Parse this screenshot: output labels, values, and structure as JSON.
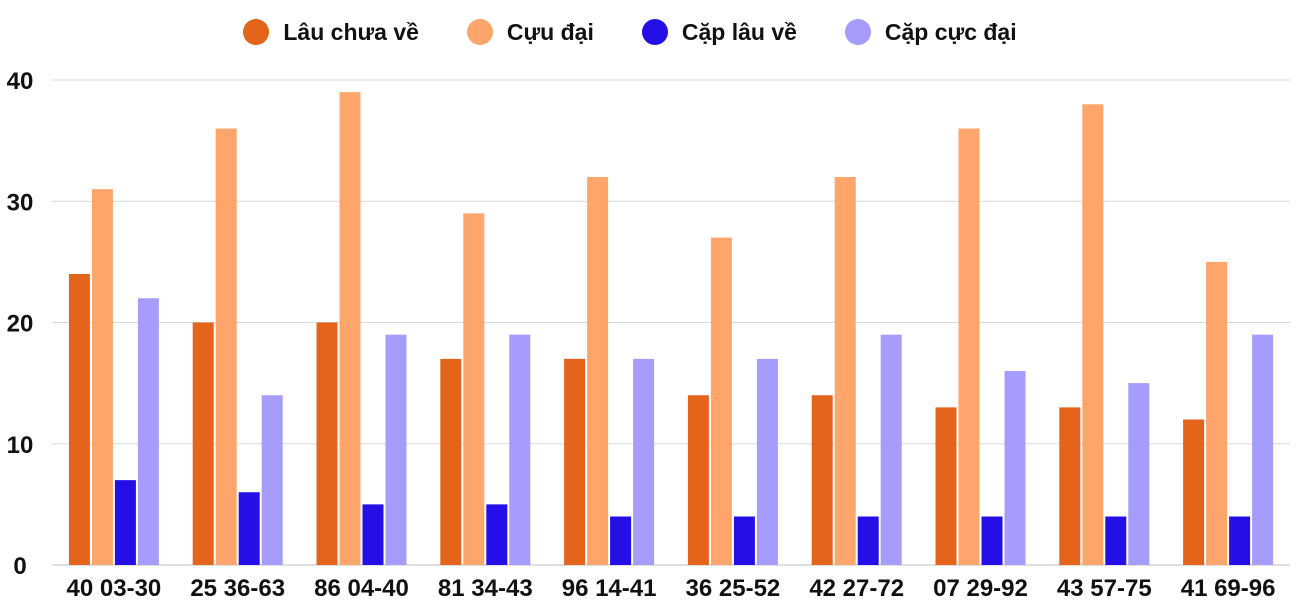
{
  "colors": {
    "lau_chua_ve": "#e4641b",
    "cuu_dai": "#fea56b",
    "cap_lau_ve": "#2410e6",
    "cap_cuc_dai": "#a59cfc",
    "grid": "#d9d9d9",
    "text": "#111111"
  },
  "legend": [
    {
      "label": "Lâu chưa về",
      "color_key": "lau_chua_ve"
    },
    {
      "label": "Cựu đại",
      "color_key": "cuu_dai"
    },
    {
      "label": "Cặp lâu về",
      "color_key": "cap_lau_ve"
    },
    {
      "label": "Cặp cực đại",
      "color_key": "cap_cuc_dai"
    }
  ],
  "chart_data": {
    "type": "bar",
    "title": "",
    "xlabel": "",
    "ylabel": "",
    "ylim": [
      0,
      40
    ],
    "yticks": [
      0,
      10,
      20,
      30,
      40
    ],
    "grid": true,
    "legend_position": "top",
    "categories": [
      "40 03-30",
      "25 36-63",
      "86 04-40",
      "81 34-43",
      "96 14-41",
      "36 25-52",
      "42 27-72",
      "07 29-92",
      "43 57-75",
      "41 69-96"
    ],
    "series": [
      {
        "name": "Lâu chưa về",
        "color_key": "lau_chua_ve",
        "values": [
          24,
          20,
          20,
          17,
          17,
          14,
          14,
          13,
          13,
          12
        ]
      },
      {
        "name": "Cựu đại",
        "color_key": "cuu_dai",
        "values": [
          31,
          36,
          39,
          29,
          32,
          27,
          32,
          36,
          38,
          25
        ]
      },
      {
        "name": "Cặp lâu về",
        "color_key": "cap_lau_ve",
        "values": [
          7,
          6,
          5,
          5,
          4,
          4,
          4,
          4,
          4,
          4
        ]
      },
      {
        "name": "Cặp cực đại",
        "color_key": "cap_cuc_dai",
        "values": [
          22,
          14,
          19,
          19,
          17,
          17,
          19,
          16,
          15,
          19
        ]
      }
    ]
  }
}
